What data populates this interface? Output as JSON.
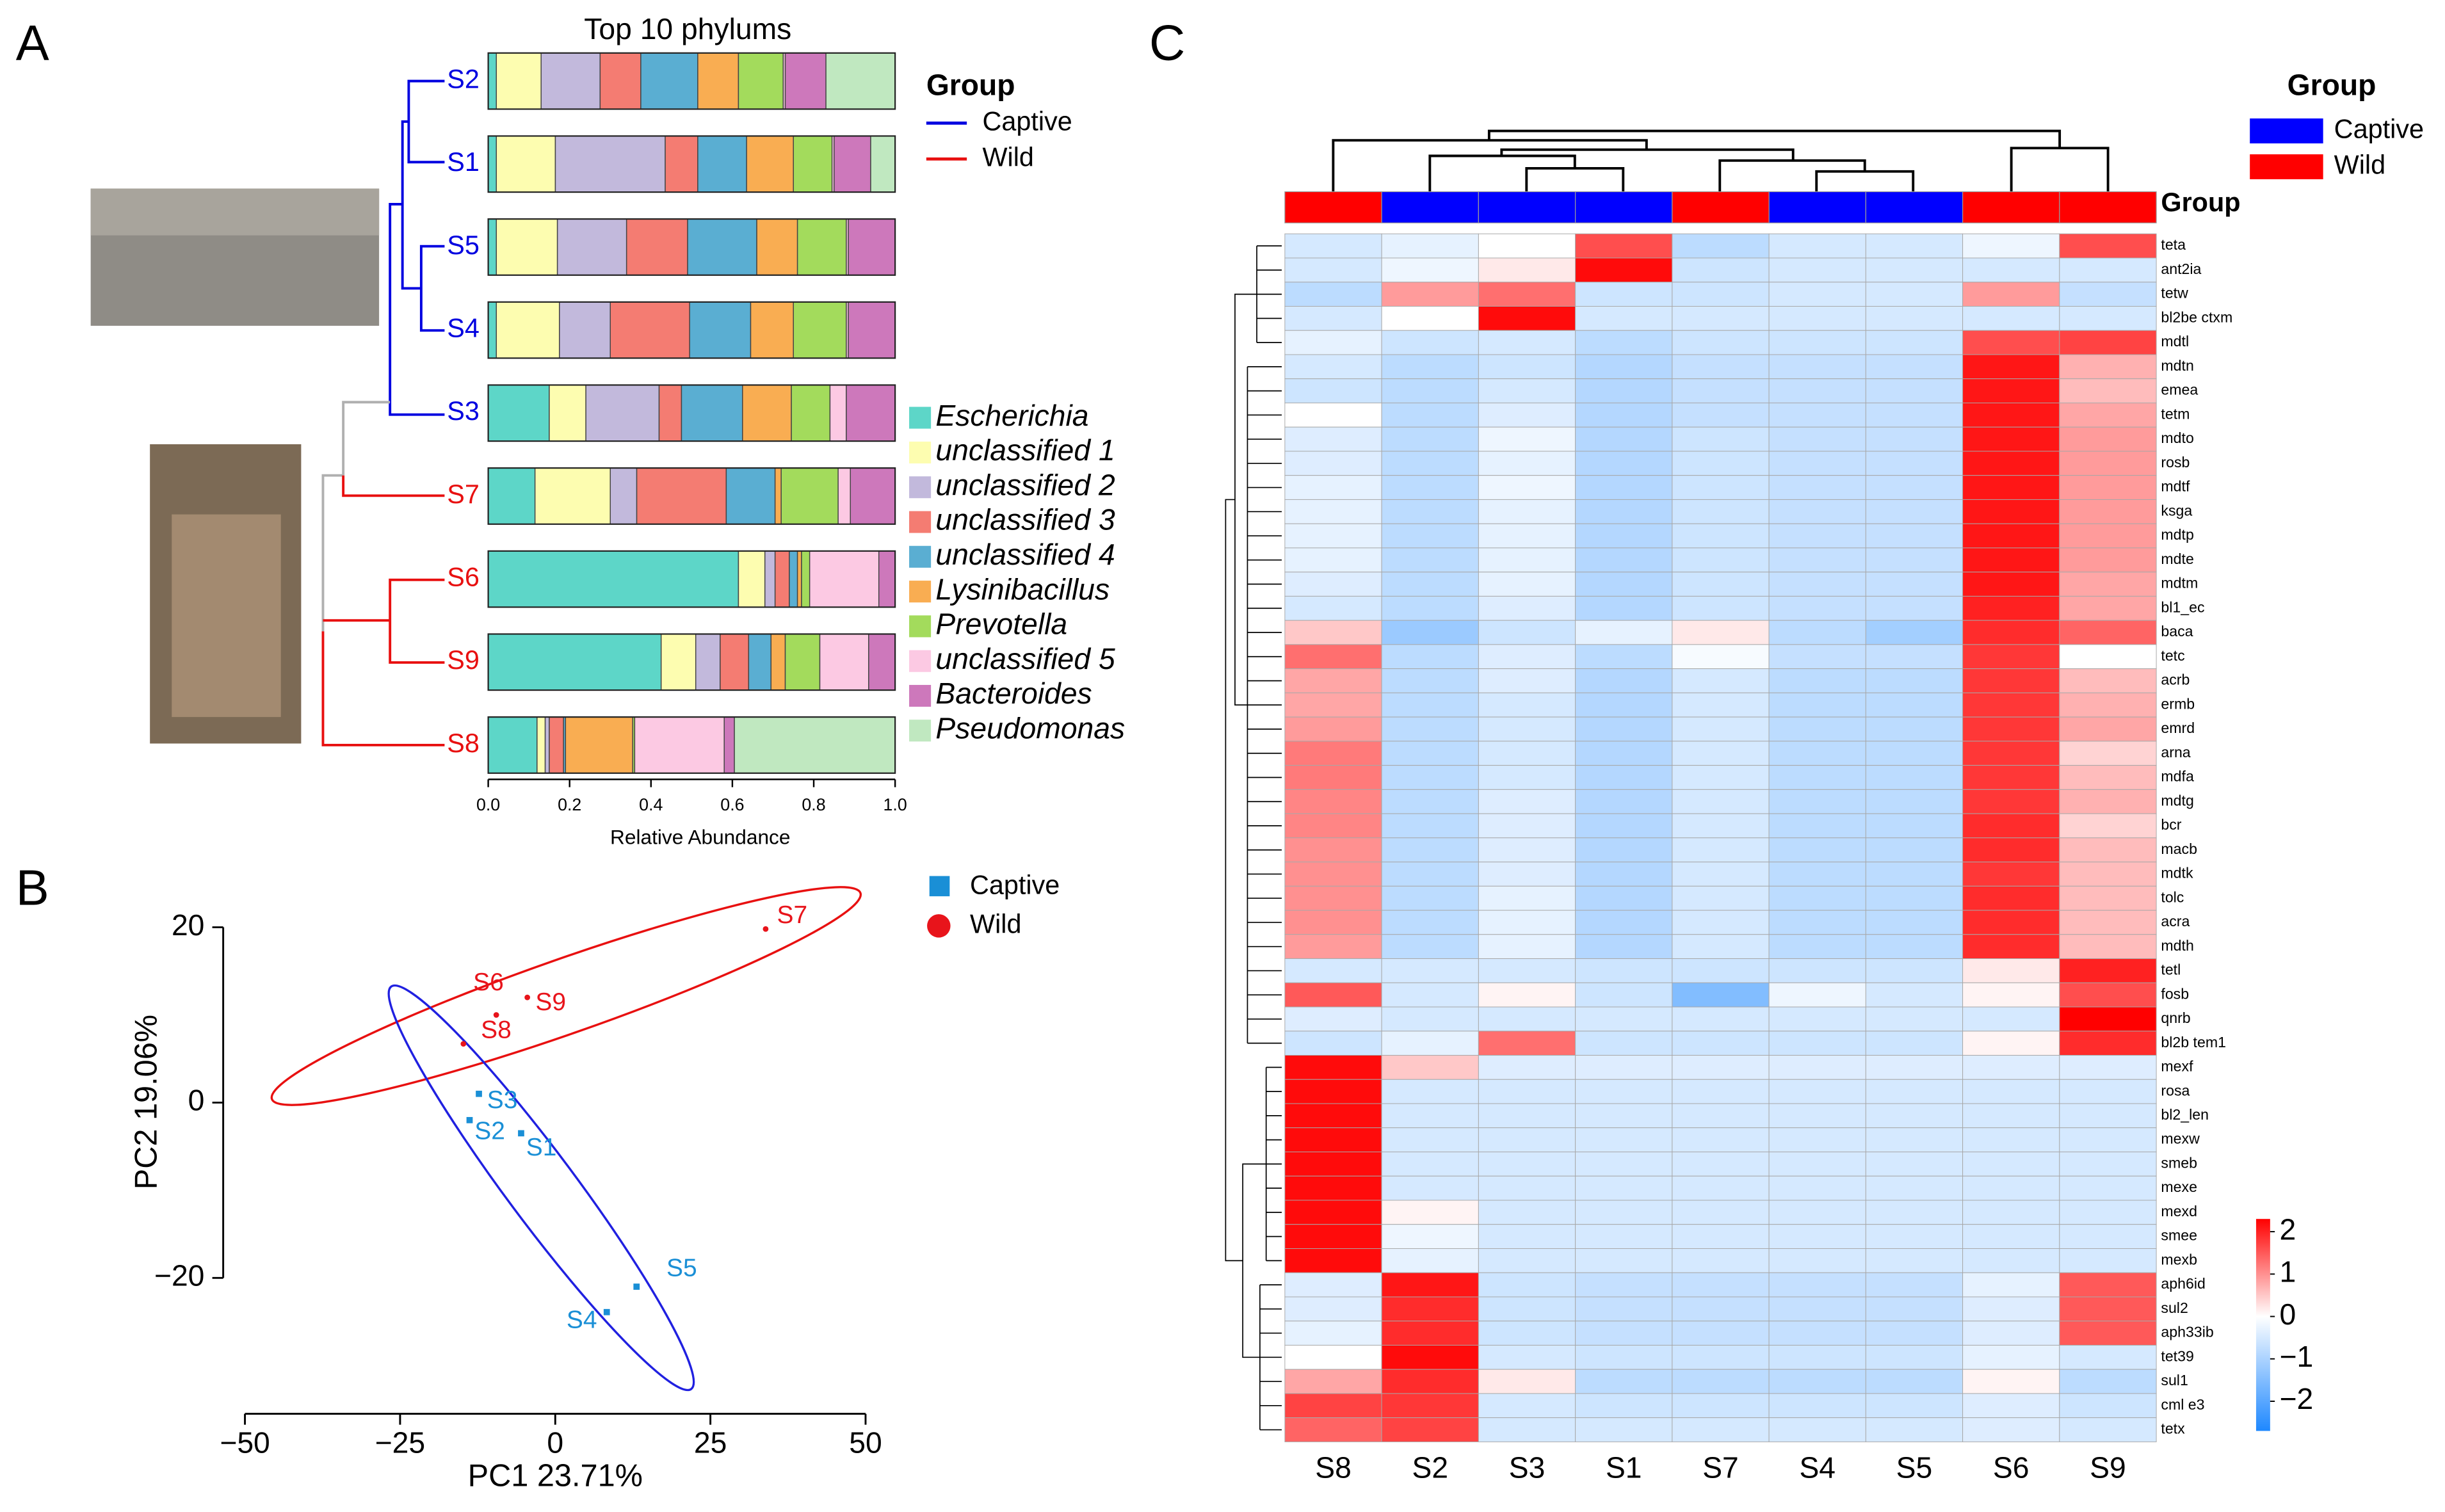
{
  "chart_data": [
    {
      "type": "bar",
      "orientation": "horizontal",
      "stacked": true,
      "panel_label": "A",
      "title": "Top 10 phylums",
      "xlabel": "Relative Abundance",
      "categories": [
        "S2",
        "S1",
        "S5",
        "S4",
        "S3",
        "S7",
        "S6",
        "S9",
        "S8"
      ],
      "category_groups": [
        "Captive",
        "Captive",
        "Captive",
        "Captive",
        "Captive",
        "Wild",
        "Wild",
        "Wild",
        "Wild"
      ],
      "group_legend": {
        "title": "Group",
        "items": [
          {
            "name": "Captive",
            "color": "#0000e0"
          },
          {
            "name": "Wild",
            "color": "#e81010"
          }
        ]
      },
      "series": [
        {
          "name": "Escherichia",
          "color": "#5dd6c8",
          "values": [
            0.02,
            0.02,
            0.02,
            0.02,
            0.15,
            0.115,
            0.615,
            0.425,
            0.12
          ]
        },
        {
          "name": "unclassified 1",
          "color": "#fdfdb0",
          "values": [
            0.11,
            0.145,
            0.15,
            0.155,
            0.09,
            0.185,
            0.065,
            0.085,
            0.02
          ]
        },
        {
          "name": "unclassified 2",
          "color": "#c2b9dc",
          "values": [
            0.145,
            0.27,
            0.17,
            0.125,
            0.18,
            0.065,
            0.025,
            0.06,
            0.01
          ]
        },
        {
          "name": "unclassified 3",
          "color": "#f47c72",
          "values": [
            0.1,
            0.08,
            0.15,
            0.195,
            0.055,
            0.22,
            0.035,
            0.07,
            0.035
          ]
        },
        {
          "name": "unclassified 4",
          "color": "#5aaed2",
          "values": [
            0.14,
            0.12,
            0.17,
            0.15,
            0.15,
            0.12,
            0.02,
            0.055,
            0.005
          ]
        },
        {
          "name": "Lysinibacillus",
          "color": "#f9ad52",
          "values": [
            0.1,
            0.115,
            0.1,
            0.105,
            0.12,
            0.015,
            0.01,
            0.035,
            0.165
          ]
        },
        {
          "name": "Prevotella",
          "color": "#a3db5c",
          "values": [
            0.11,
            0.095,
            0.12,
            0.13,
            0.095,
            0.14,
            0.02,
            0.085,
            0.005
          ]
        },
        {
          "name": "unclassified 5",
          "color": "#fcc9e3",
          "values": [
            0.005,
            0.005,
            0.005,
            0.005,
            0.04,
            0.03,
            0.17,
            0.12,
            0.22
          ]
        },
        {
          "name": "Bacteroides",
          "color": "#cd78bb",
          "values": [
            0.1,
            0.09,
            0.115,
            0.115,
            0.12,
            0.11,
            0.04,
            0.065,
            0.025
          ]
        },
        {
          "name": "Pseudomonas",
          "color": "#c0e8c0",
          "values": [
            0.17,
            0.06,
            0,
            0,
            0,
            0,
            0,
            0,
            0.395
          ]
        }
      ],
      "xlim": [
        0,
        1
      ],
      "xticks": [
        {
          "value": 0,
          "label": "0.0"
        },
        0.2,
        0.4,
        0.6,
        0.8,
        {
          "value": 1,
          "label": "1.0"
        }
      ]
    },
    {
      "type": "scatter",
      "panel_label": "B",
      "xlabel": "PC1 23.71%",
      "ylabel": "PC2 19.06%",
      "xlim": [
        -53.5,
        52.5
      ],
      "ylim": [
        -35.5,
        26.2
      ],
      "xticks": [
        {
          "value": -50,
          "label": "−50"
        },
        {
          "value": -25,
          "label": "−25"
        },
        0,
        25,
        50
      ],
      "yticks": [
        {
          "value": -20,
          "label": "−20"
        },
        0,
        20
      ],
      "series": [
        {
          "name": "Captive",
          "color": "#1a8fd6",
          "marker": "square",
          "labels": [
            "S3",
            "S2",
            "S1",
            "S5",
            "S4"
          ],
          "x": [
            -12.3,
            -13.8,
            -5.5,
            13.1,
            8.3
          ],
          "y": [
            1.0,
            -2.0,
            -3.5,
            -21.0,
            -23.9
          ]
        },
        {
          "name": "Wild",
          "color": "#e8141b",
          "marker": "circle",
          "labels": [
            "S7",
            "S6",
            "S9",
            "S8"
          ],
          "x": [
            33.9,
            -9.5,
            -4.5,
            -14.8
          ],
          "y": [
            19.8,
            10.0,
            12.0,
            6.7
          ]
        }
      ]
    },
    {
      "type": "heatmap",
      "panel_label": "C",
      "group_label": "Group",
      "columns": [
        "S8",
        "S2",
        "S3",
        "S1",
        "S7",
        "S4",
        "S5",
        "S6",
        "S9"
      ],
      "column_groups": [
        "Wild",
        "Captive",
        "Captive",
        "Captive",
        "Wild",
        "Captive",
        "Captive",
        "Wild",
        "Wild"
      ],
      "legend": {
        "title": "Group",
        "items": [
          {
            "name": "Captive",
            "color": "#0000ff"
          },
          {
            "name": "Wild",
            "color": "#ff0000"
          }
        ]
      },
      "rows": [
        "teta",
        "ant2ia",
        "tetw",
        "bl2be ctxm",
        "mdtl",
        "mdtn",
        "emea",
        "tetm",
        "mdto",
        "rosb",
        "mdtf",
        "ksga",
        "mdtp",
        "mdte",
        "mdtm",
        "bl1_ec",
        "baca",
        "tetc",
        "acrb",
        "ermb",
        "emrd",
        "arna",
        "mdfa",
        "mdtg",
        "bcr",
        "macb",
        "mdtk",
        "tolc",
        "acra",
        "mdth",
        "tetl",
        "fosb",
        "qnrb",
        "bl2b tem1",
        "mexf",
        "rosa",
        "bl2_len",
        "mexw",
        "smeb",
        "mexe",
        "mexd",
        "smee",
        "mexb",
        "aph6id",
        "sul2",
        "aph33ib",
        "tet39",
        "sul1",
        "cml e3",
        "tetx"
      ],
      "values": [
        [
          -0.5,
          -0.3,
          0,
          1.6,
          -0.8,
          -0.5,
          -0.5,
          -0.2,
          1.6
        ],
        [
          -0.5,
          -0.2,
          0.2,
          2.2,
          -0.6,
          -0.5,
          -0.5,
          -0.5,
          -0.5
        ],
        [
          -0.8,
          0.9,
          1.3,
          -0.6,
          -0.6,
          -0.5,
          -0.5,
          0.9,
          -0.7
        ],
        [
          -0.5,
          0,
          2.2,
          -0.5,
          -0.5,
          -0.5,
          -0.5,
          -0.5,
          -0.5
        ],
        [
          -0.3,
          -0.6,
          -0.5,
          -0.8,
          -0.6,
          -0.6,
          -0.6,
          1.6,
          1.7
        ],
        [
          -0.5,
          -0.8,
          -0.6,
          -0.9,
          -0.7,
          -0.7,
          -0.7,
          2.1,
          0.7
        ],
        [
          -0.6,
          -0.8,
          -0.5,
          -0.9,
          -0.7,
          -0.7,
          -0.7,
          2.1,
          0.6
        ],
        [
          0,
          -0.8,
          -0.4,
          -0.9,
          -0.7,
          -0.7,
          -0.7,
          2.1,
          0.8
        ],
        [
          -0.4,
          -0.8,
          -0.2,
          -0.9,
          -0.6,
          -0.7,
          -0.7,
          2.1,
          0.9
        ],
        [
          -0.4,
          -0.8,
          -0.3,
          -0.9,
          -0.6,
          -0.7,
          -0.7,
          2.1,
          0.9
        ],
        [
          -0.3,
          -0.8,
          -0.2,
          -0.9,
          -0.6,
          -0.7,
          -0.7,
          2.1,
          0.9
        ],
        [
          -0.3,
          -0.8,
          -0.3,
          -0.9,
          -0.6,
          -0.7,
          -0.7,
          2.1,
          0.9
        ],
        [
          -0.3,
          -0.8,
          -0.3,
          -0.9,
          -0.6,
          -0.7,
          -0.7,
          2.1,
          0.9
        ],
        [
          -0.3,
          -0.8,
          -0.3,
          -0.9,
          -0.6,
          -0.7,
          -0.7,
          2.1,
          0.9
        ],
        [
          -0.4,
          -0.8,
          -0.3,
          -0.9,
          -0.6,
          -0.7,
          -0.7,
          2.1,
          0.8
        ],
        [
          -0.5,
          -0.8,
          -0.4,
          -0.9,
          -0.6,
          -0.7,
          -0.7,
          2.0,
          0.8
        ],
        [
          0.5,
          -1.2,
          -0.6,
          -0.3,
          0.2,
          -0.8,
          -1.1,
          1.9,
          1.4
        ],
        [
          1.3,
          -0.8,
          -0.4,
          -0.8,
          -0.1,
          -0.7,
          -0.7,
          1.8,
          0
        ],
        [
          0.8,
          -0.8,
          -0.4,
          -0.9,
          -0.5,
          -0.8,
          -0.8,
          1.8,
          0.6
        ],
        [
          0.8,
          -0.8,
          -0.5,
          -0.9,
          -0.5,
          -0.8,
          -0.8,
          1.8,
          0.7
        ],
        [
          0.9,
          -0.8,
          -0.5,
          -0.9,
          -0.5,
          -0.8,
          -0.8,
          1.8,
          0.8
        ],
        [
          1.2,
          -0.8,
          -0.5,
          -0.9,
          -0.5,
          -0.8,
          -0.8,
          1.8,
          0.4
        ],
        [
          1.2,
          -0.8,
          -0.5,
          -0.9,
          -0.5,
          -0.8,
          -0.8,
          1.8,
          0.6
        ],
        [
          1.1,
          -0.8,
          -0.4,
          -0.9,
          -0.5,
          -0.8,
          -0.8,
          1.8,
          0.7
        ],
        [
          1.1,
          -0.8,
          -0.4,
          -0.9,
          -0.5,
          -0.8,
          -0.8,
          1.9,
          0.4
        ],
        [
          1.0,
          -0.8,
          -0.4,
          -0.9,
          -0.5,
          -0.8,
          -0.8,
          1.9,
          0.6
        ],
        [
          1.0,
          -0.8,
          -0.4,
          -0.9,
          -0.5,
          -0.8,
          -0.8,
          1.8,
          0.6
        ],
        [
          1.0,
          -0.8,
          -0.3,
          -0.9,
          -0.5,
          -0.8,
          -0.8,
          1.9,
          0.6
        ],
        [
          1.0,
          -0.8,
          -0.3,
          -0.9,
          -0.5,
          -0.8,
          -0.8,
          1.9,
          0.6
        ],
        [
          0.9,
          -0.8,
          -0.3,
          -0.9,
          -0.5,
          -0.8,
          -0.8,
          1.9,
          0.6
        ],
        [
          -0.5,
          -0.5,
          -0.5,
          -0.6,
          -0.6,
          -0.6,
          -0.6,
          0.2,
          2.0
        ],
        [
          1.5,
          -0.5,
          0.1,
          -0.6,
          -1.5,
          -0.2,
          -0.5,
          0.1,
          1.6
        ],
        [
          -0.4,
          -0.5,
          -0.5,
          -0.5,
          -0.5,
          -0.5,
          -0.5,
          -0.5,
          2.3
        ],
        [
          -0.6,
          -0.3,
          1.3,
          -0.6,
          -0.6,
          -0.6,
          -0.6,
          0.1,
          1.9
        ],
        [
          2.2,
          0.5,
          -0.4,
          -0.4,
          -0.4,
          -0.4,
          -0.4,
          -0.4,
          -0.4
        ],
        [
          2.2,
          -0.5,
          -0.5,
          -0.5,
          -0.5,
          -0.5,
          -0.5,
          -0.5,
          -0.5
        ],
        [
          2.2,
          -0.5,
          -0.5,
          -0.5,
          -0.5,
          -0.5,
          -0.5,
          -0.5,
          -0.5
        ],
        [
          2.2,
          -0.5,
          -0.5,
          -0.5,
          -0.5,
          -0.5,
          -0.5,
          -0.5,
          -0.5
        ],
        [
          2.2,
          -0.5,
          -0.5,
          -0.5,
          -0.5,
          -0.5,
          -0.5,
          -0.5,
          -0.5
        ],
        [
          2.2,
          -0.5,
          -0.5,
          -0.5,
          -0.5,
          -0.5,
          -0.5,
          -0.5,
          -0.5
        ],
        [
          2.2,
          0.1,
          -0.5,
          -0.5,
          -0.5,
          -0.5,
          -0.5,
          -0.5,
          -0.5
        ],
        [
          2.2,
          -0.2,
          -0.5,
          -0.5,
          -0.5,
          -0.5,
          -0.5,
          -0.5,
          -0.5
        ],
        [
          2.2,
          -0.3,
          -0.5,
          -0.5,
          -0.5,
          -0.5,
          -0.5,
          -0.5,
          -0.5
        ],
        [
          -0.4,
          2.1,
          -0.6,
          -0.7,
          -0.7,
          -0.7,
          -0.7,
          -0.3,
          1.5
        ],
        [
          -0.4,
          1.9,
          -0.6,
          -0.7,
          -0.7,
          -0.7,
          -0.7,
          -0.4,
          1.5
        ],
        [
          -0.3,
          1.9,
          -0.6,
          -0.7,
          -0.7,
          -0.7,
          -0.7,
          -0.4,
          1.5
        ],
        [
          0,
          2.2,
          -0.5,
          -0.6,
          -0.6,
          -0.6,
          -0.6,
          -0.3,
          -0.5
        ],
        [
          0.8,
          1.9,
          0.2,
          -0.8,
          -0.8,
          -0.8,
          -0.8,
          0.1,
          -0.8
        ],
        [
          1.7,
          1.8,
          -0.5,
          -0.6,
          -0.6,
          -0.6,
          -0.6,
          -0.4,
          -0.6
        ],
        [
          1.4,
          1.7,
          -0.5,
          -0.5,
          -0.5,
          -0.5,
          -0.5,
          -0.4,
          -0.5
        ]
      ],
      "colors": [
        "#1e88ff",
        "#ffffff",
        "#ff0000"
      ],
      "color_stops": [
        -2.7,
        0,
        2.3
      ],
      "colorbar_ticks": [
        2,
        1,
        0,
        {
          "value": -1,
          "label": "−1"
        },
        {
          "value": -2,
          "label": "−2"
        }
      ]
    }
  ]
}
